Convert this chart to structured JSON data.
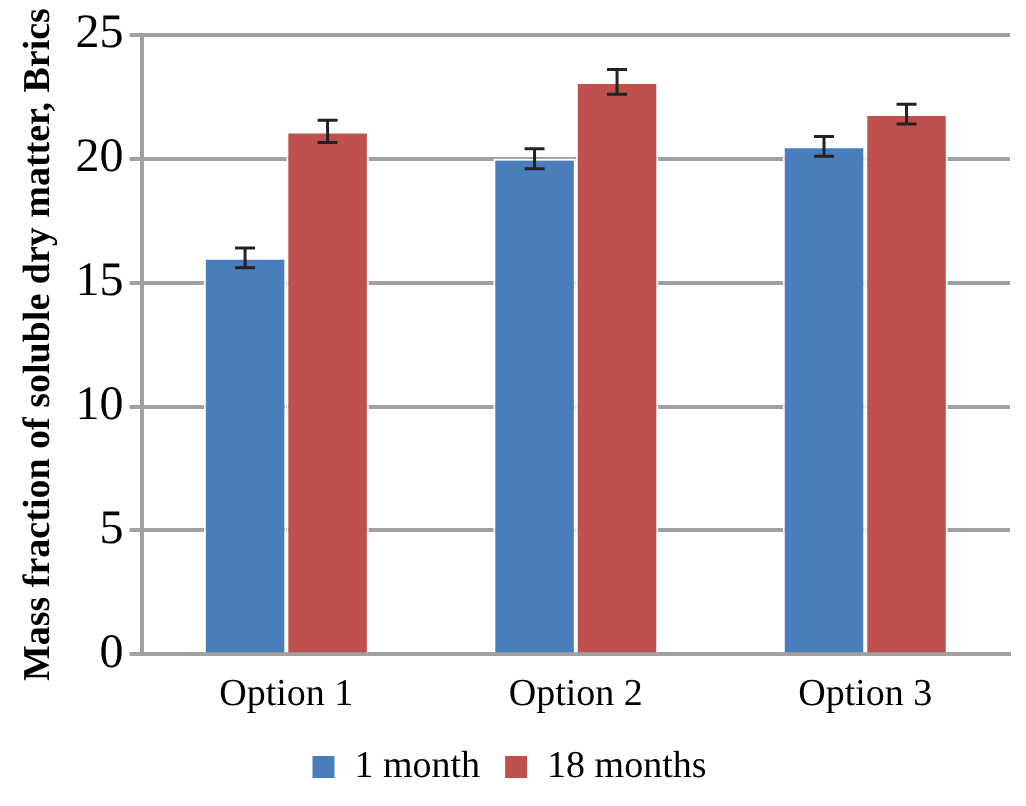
{
  "chart_data": {
    "type": "bar",
    "ylabel": "Mass fraction of soluble dry matter, Brics",
    "categories": [
      "Option 1",
      "Option 2",
      "Option 3"
    ],
    "series": [
      {
        "name": "1 month",
        "color": "#4a7ebb",
        "values": [
          16.0,
          20.0,
          20.5
        ],
        "errors": [
          0.4,
          0.4,
          0.4
        ]
      },
      {
        "name": "18 months",
        "color": "#c0504d",
        "values": [
          21.1,
          23.1,
          21.8
        ],
        "errors": [
          0.45,
          0.5,
          0.4
        ]
      }
    ],
    "ylim": [
      0,
      25
    ],
    "yticks": [
      0,
      5,
      10,
      15,
      20,
      25
    ],
    "grid": "y",
    "legend": "bottom"
  }
}
